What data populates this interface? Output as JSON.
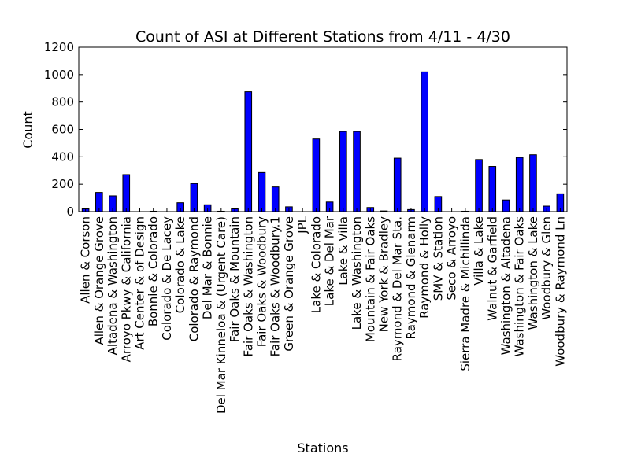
{
  "chart_data": {
    "type": "bar",
    "title": "Count of ASI at Different Stations from 4/11 - 4/30",
    "xlabel": "Stations",
    "ylabel": "Count",
    "ylim": [
      0,
      1200
    ],
    "yticks": [
      0,
      200,
      400,
      600,
      800,
      1000,
      1200
    ],
    "grid": false,
    "bar_color": "#0000ff",
    "categories": [
      "Allen & Corson",
      "Allen & Orange Grove",
      "Altadena & Washington",
      "Arroyo Pkwy & California",
      "Art Center & of Design",
      "Bonnie & Colorado",
      "Colorado & De Lacey",
      "Colorado & Lake",
      "Colorado & Raymond",
      "Del Mar & Bonnie",
      "Del Mar Kinneloa & (Urgent Care)",
      "Fair Oaks & Mountain",
      "Fair Oaks & Washington",
      "Fair Oaks & Woodbury",
      "Fair Oaks & Woodbury.1",
      "Green & Orange Grove",
      "JPL",
      "Lake & Colorado",
      "Lake & Del Mar",
      "Lake & Villa",
      "Lake & Washington",
      "Mountain & Fair Oaks",
      "New York & Bradley",
      "Raymond & Del Mar Sta.",
      "Raymond & Glenarm",
      "Raymond & Holly",
      "SMV & Station",
      "Seco & Arroyo",
      "Sierra Madre & Michillinda",
      "Villa & Lake",
      "Walnut & Garfield",
      "Washington & Altadena",
      "Washington & Fair Oaks",
      "Washington & Lake",
      "Woodbury & Glen",
      "Woodbury & Raymond Ln"
    ],
    "values": [
      20,
      140,
      115,
      270,
      0,
      3,
      0,
      65,
      205,
      50,
      3,
      20,
      875,
      285,
      180,
      35,
      0,
      530,
      70,
      585,
      585,
      30,
      5,
      390,
      15,
      1020,
      110,
      0,
      3,
      380,
      330,
      85,
      395,
      415,
      40,
      130
    ]
  }
}
